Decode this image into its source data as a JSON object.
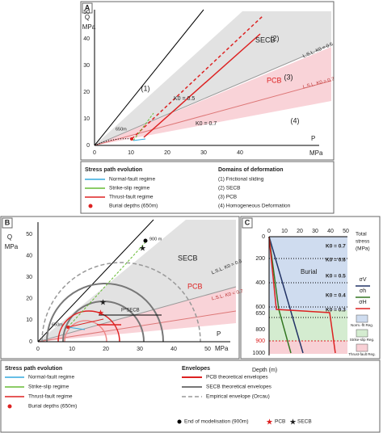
{
  "panel_a": {
    "label": "A",
    "q_label": "Q",
    "q_unit": "MPa",
    "p_label": "P",
    "p_unit": "MPa",
    "x_ticks": [
      "0",
      "10",
      "20",
      "30",
      "40"
    ],
    "y_ticks": [
      "0",
      "10",
      "20",
      "30",
      "40",
      "50"
    ],
    "domains": [
      "(1)",
      "(2)",
      "(3)",
      "(4)"
    ],
    "secb": "SECB",
    "pcb": "PCB",
    "lsl_05": "L.S.L. K0 = 0.5",
    "lsl_07": "L.S.L. K0 = 0.7",
    "k0_05": "K0 = 0.5",
    "k0_07": "K0 = 0.7",
    "depth": "650m"
  },
  "legend_a": {
    "stress_title": "Stress path evolution",
    "stress_items": [
      "Normal-fault regime",
      "Strike-slip regime",
      "Thrust-fault regime",
      "Burial depths (650m)"
    ],
    "domains_title": "Domains of deformation",
    "domain_items": [
      "(1) Frictional sliding",
      "(2) SECB",
      "(3) PCB",
      "(4) Homogeneous Deformation"
    ]
  },
  "panel_b": {
    "label": "B",
    "q_label": "Q",
    "q_unit": "MPa",
    "p_label": "P",
    "p_unit": "MPa",
    "x_ticks": [
      "0",
      "10",
      "20",
      "30",
      "40",
      "50"
    ],
    "y_ticks": [
      "0",
      "10",
      "20",
      "30",
      "40",
      "50"
    ],
    "secb": "SECB",
    "pcb": "PCB",
    "lsl_05": "L.S.L. K0 = 0.5",
    "lsl_07": "L.S.L. K0 = 0.7",
    "depth_900": "900 m",
    "depth_650": "650m",
    "p_secb": "P*SECB"
  },
  "legend_b": {
    "stress_title": "Stress path evolution",
    "stress_items": [
      "Normal-fault regime",
      "Strike-slip regime",
      "Thrust-fault regime",
      "Burial depths (650m)"
    ],
    "env_title": "Envelopes",
    "env_items": [
      "PCB theoretical envelopes",
      "SECB theoretical envelopes",
      "Empirical envelope (Orcau)"
    ],
    "markers": [
      "End of modelisation (900m)",
      "PCB",
      "SECB"
    ]
  },
  "panel_c": {
    "label": "C",
    "stress_ticks": [
      "0",
      "10",
      "20",
      "30",
      "40",
      "50"
    ],
    "stress_title": [
      "Total",
      "stress",
      "(MPa)"
    ],
    "depth_ticks": [
      "0",
      "200",
      "400",
      "600",
      "650",
      "800",
      "900",
      "1000"
    ],
    "depth_label": "Depth (m)",
    "burial": "Burial",
    "k0": [
      "K0 = 0.7",
      "K0 = 0.6",
      "K0 = 0.5",
      "K0 = 0.4",
      "K0 = 0.3"
    ],
    "curves": [
      "σV",
      "σh",
      "σH"
    ],
    "regimes": [
      "Norm.-flt Reg.",
      "Strike-slip Reg.",
      "Thrust-fault Reg."
    ]
  }
}
